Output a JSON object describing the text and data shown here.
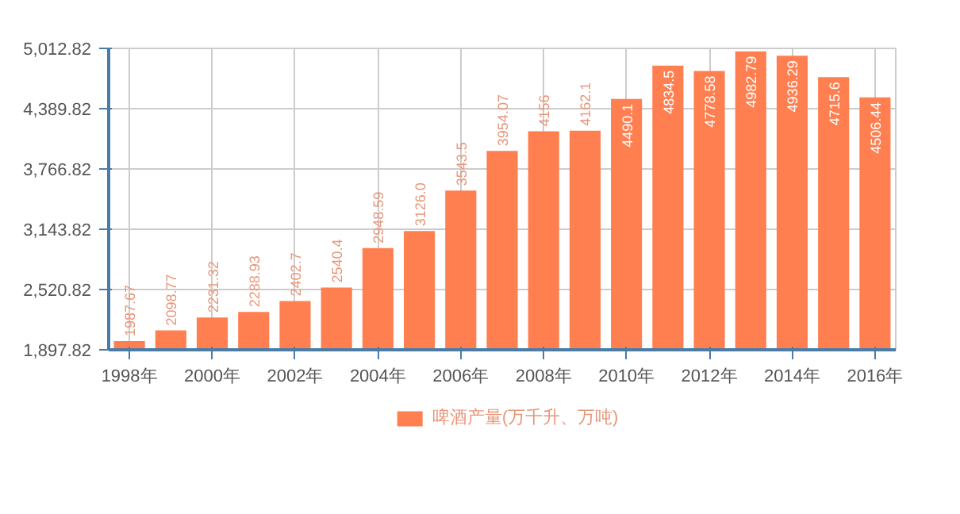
{
  "chart_data": {
    "type": "bar",
    "categories": [
      "1998年",
      null,
      "2000年",
      null,
      "2002年",
      null,
      "2004年",
      null,
      "2006年",
      null,
      "2008年",
      null,
      "2010年",
      null,
      "2012年",
      null,
      "2014年",
      null,
      "2016年"
    ],
    "series": [
      {
        "name": "啤酒产量(万千升、万吨)",
        "color": "#ff7f50",
        "values": [
          1987.67,
          2098.77,
          2231.32,
          2288.93,
          2402.7,
          2540.4,
          2948.59,
          3126.0,
          3543.5,
          3954.07,
          4156,
          4162.1,
          4490.1,
          4834.5,
          4778.58,
          4982.79,
          4936.29,
          4715.6,
          4506.44
        ],
        "value_labels": [
          "1987.67",
          "2098.77",
          "2231.32",
          "2288.93",
          "2402.7",
          "2540.4",
          "2948.59",
          "3126.0",
          "3543.5",
          "3954.07",
          "4156",
          "4162.1",
          "4490.1",
          "4834.5",
          "4778.58",
          "4982.79",
          "4936.29",
          "4715.6",
          "4506.44"
        ]
      }
    ],
    "ylim": [
      1897.82,
      5012.82
    ],
    "yticks": [
      {
        "value": 1897.82,
        "label": "1,897.82"
      },
      {
        "value": 2520.82,
        "label": "2,520.82"
      },
      {
        "value": 3143.82,
        "label": "3,143.82"
      },
      {
        "value": 3766.82,
        "label": "3,766.82"
      },
      {
        "value": 4389.82,
        "label": "4,389.82"
      },
      {
        "value": 5012.82,
        "label": "5,012.82"
      }
    ],
    "grid": true,
    "legend": "bottom"
  }
}
